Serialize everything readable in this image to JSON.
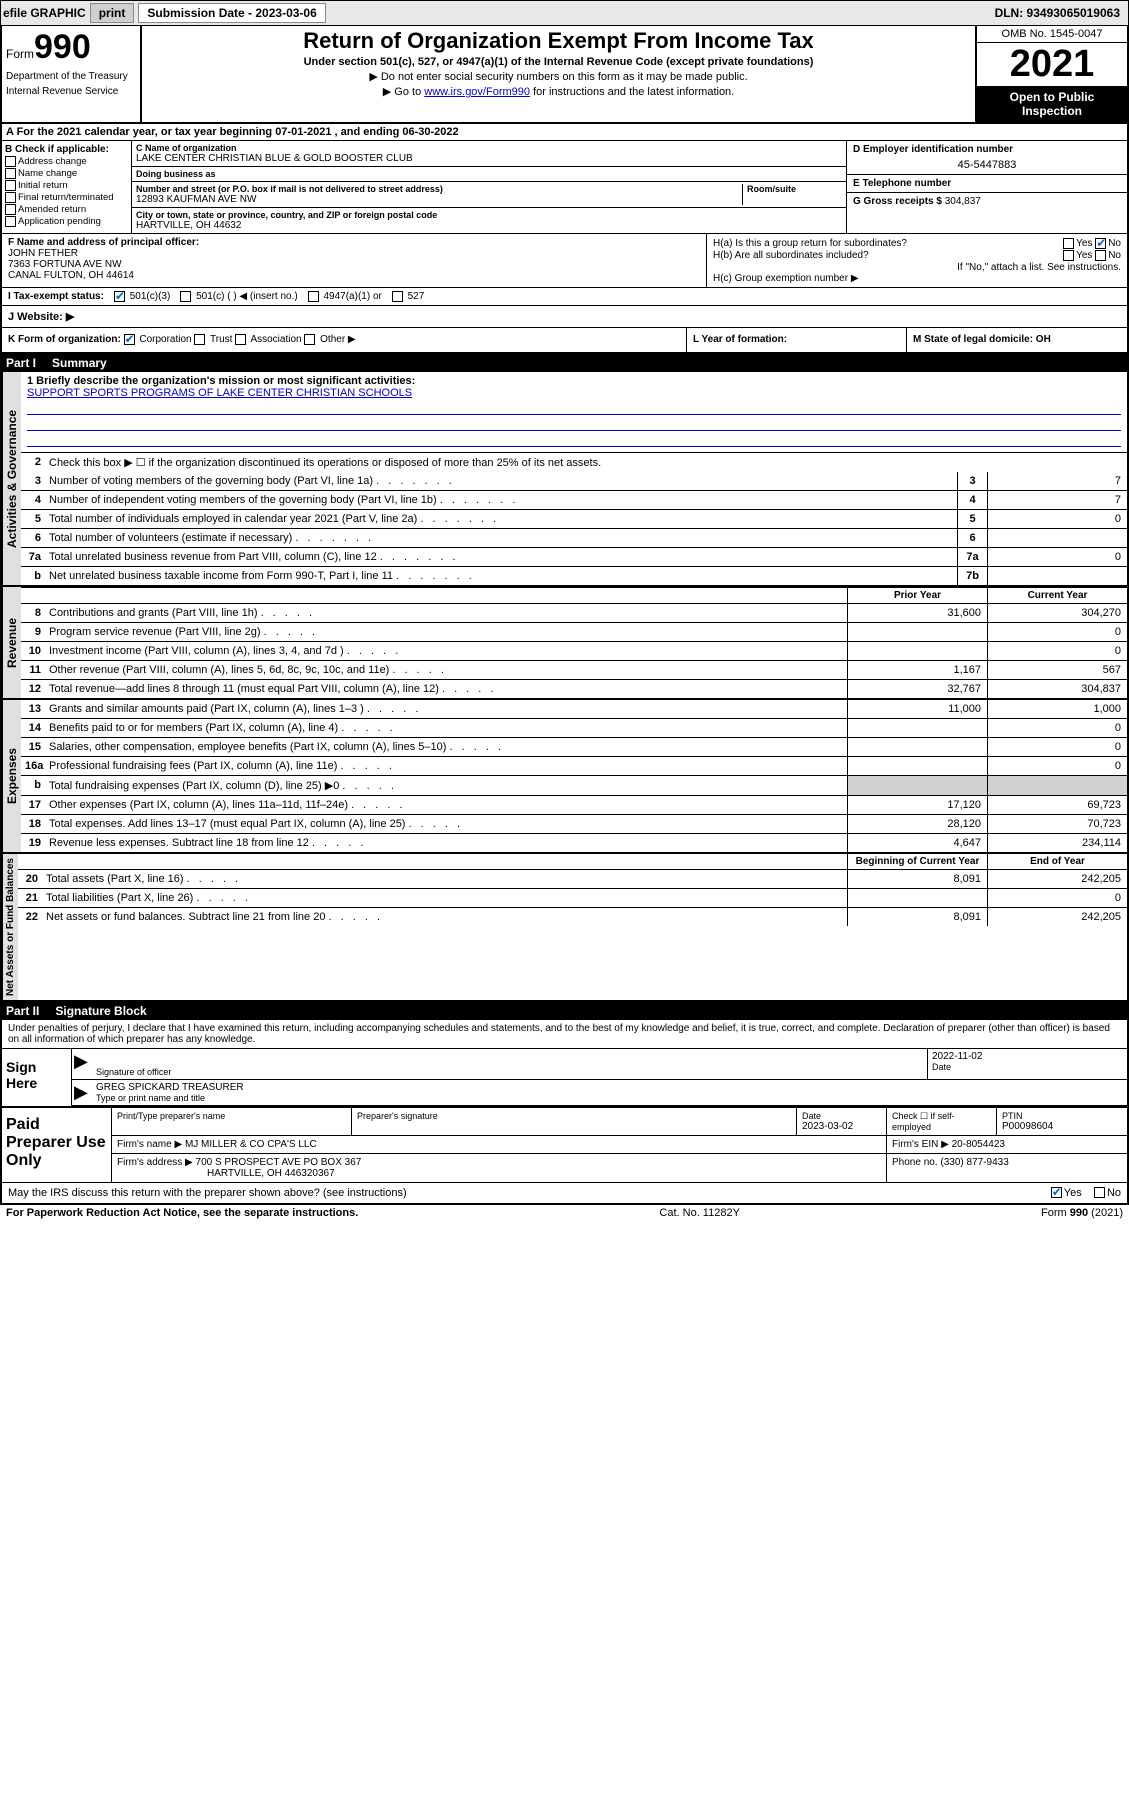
{
  "topbar": {
    "efile_label": "efile GRAPHIC",
    "print_btn": "print",
    "submission_label": "Submission Date - 2023-03-06",
    "dln_label": "DLN: 93493065019063"
  },
  "header": {
    "form_word": "Form",
    "form_num": "990",
    "dept": "Department of the Treasury",
    "irs": "Internal Revenue Service",
    "title": "Return of Organization Exempt From Income Tax",
    "subtitle": "Under section 501(c), 527, or 4947(a)(1) of the Internal Revenue Code (except private foundations)",
    "note1": "▶ Do not enter social security numbers on this form as it may be made public.",
    "note2_pre": "▶ Go to ",
    "note2_link": "www.irs.gov/Form990",
    "note2_post": " for instructions and the latest information.",
    "omb": "OMB No. 1545-0047",
    "year": "2021",
    "open": "Open to Public Inspection"
  },
  "period": {
    "text": "A For the 2021 calendar year, or tax year beginning 07-01-2021  , and ending 06-30-2022"
  },
  "colB": {
    "hdr": "B Check if applicable:",
    "items": [
      "Address change",
      "Name change",
      "Initial return",
      "Final return/terminated",
      "Amended return",
      "Application pending"
    ]
  },
  "colC": {
    "name_lbl": "C Name of organization",
    "name": "LAKE CENTER CHRISTIAN BLUE & GOLD BOOSTER CLUB",
    "dba_lbl": "Doing business as",
    "dba": "",
    "addr_lbl": "Number and street (or P.O. box if mail is not delivered to street address)",
    "room_lbl": "Room/suite",
    "addr": "12893 KAUFMAN AVE NW",
    "city_lbl": "City or town, state or province, country, and ZIP or foreign postal code",
    "city": "HARTVILLE, OH  44632"
  },
  "colD": {
    "ein_lbl": "D Employer identification number",
    "ein": "45-5447883",
    "tel_lbl": "E Telephone number",
    "tel": "",
    "gross_lbl": "G Gross receipts $",
    "gross": "304,837"
  },
  "officer": {
    "lbl": "F Name and address of principal officer:",
    "name": "JOHN FETHER",
    "addr1": "7363 FORTUNA AVE NW",
    "addr2": "CANAL FULTON, OH  44614"
  },
  "groupH": {
    "ha": "H(a)  Is this a group return for subordinates?",
    "ha_yes": "Yes",
    "ha_no": "No",
    "hb": "H(b)  Are all subordinates included?",
    "hb_yes": "Yes",
    "hb_no": "No",
    "hb_note": "If \"No,\" attach a list. See instructions.",
    "hc": "H(c)  Group exemption number ▶"
  },
  "status": {
    "lbl": "I   Tax-exempt status:",
    "o1": "501(c)(3)",
    "o2": "501(c) (  ) ◀ (insert no.)",
    "o3": "4947(a)(1) or",
    "o4": "527"
  },
  "website": {
    "lbl": "J   Website: ▶"
  },
  "korg": {
    "k": "K Form of organization:",
    "k_opts": [
      "Corporation",
      "Trust",
      "Association",
      "Other ▶"
    ],
    "l": "L Year of formation:",
    "m": "M State of legal domicile: OH"
  },
  "part1": {
    "hdr_num": "Part I",
    "hdr_title": "Summary",
    "vlabels": {
      "act": "Activities & Governance",
      "rev": "Revenue",
      "exp": "Expenses",
      "net": "Net Assets or Fund Balances"
    },
    "q1_lbl": "1  Briefly describe the organization's mission or most significant activities:",
    "q1_text": "SUPPORT SPORTS PROGRAMS OF LAKE CENTER CHRISTIAN SCHOOLS",
    "q2": "Check this box ▶ ☐ if the organization discontinued its operations or disposed of more than 25% of its net assets.",
    "lines_gov": [
      {
        "n": "3",
        "d": "Number of voting members of the governing body (Part VI, line 1a)",
        "box": "3",
        "v": "7"
      },
      {
        "n": "4",
        "d": "Number of independent voting members of the governing body (Part VI, line 1b)",
        "box": "4",
        "v": "7"
      },
      {
        "n": "5",
        "d": "Total number of individuals employed in calendar year 2021 (Part V, line 2a)",
        "box": "5",
        "v": "0"
      },
      {
        "n": "6",
        "d": "Total number of volunteers (estimate if necessary)",
        "box": "6",
        "v": ""
      },
      {
        "n": "7a",
        "d": "Total unrelated business revenue from Part VIII, column (C), line 12",
        "box": "7a",
        "v": "0"
      },
      {
        "n": "b",
        "d": "Net unrelated business taxable income from Form 990-T, Part I, line 11",
        "box": "7b",
        "v": ""
      }
    ],
    "col_hdr_prior": "Prior Year",
    "col_hdr_curr": "Current Year",
    "lines_rev": [
      {
        "n": "8",
        "d": "Contributions and grants (Part VIII, line 1h)",
        "p": "31,600",
        "c": "304,270"
      },
      {
        "n": "9",
        "d": "Program service revenue (Part VIII, line 2g)",
        "p": "",
        "c": "0"
      },
      {
        "n": "10",
        "d": "Investment income (Part VIII, column (A), lines 3, 4, and 7d )",
        "p": "",
        "c": "0"
      },
      {
        "n": "11",
        "d": "Other revenue (Part VIII, column (A), lines 5, 6d, 8c, 9c, 10c, and 11e)",
        "p": "1,167",
        "c": "567"
      },
      {
        "n": "12",
        "d": "Total revenue—add lines 8 through 11 (must equal Part VIII, column (A), line 12)",
        "p": "32,767",
        "c": "304,837"
      }
    ],
    "lines_exp": [
      {
        "n": "13",
        "d": "Grants and similar amounts paid (Part IX, column (A), lines 1–3 )",
        "p": "11,000",
        "c": "1,000"
      },
      {
        "n": "14",
        "d": "Benefits paid to or for members (Part IX, column (A), line 4)",
        "p": "",
        "c": "0"
      },
      {
        "n": "15",
        "d": "Salaries, other compensation, employee benefits (Part IX, column (A), lines 5–10)",
        "p": "",
        "c": "0"
      },
      {
        "n": "16a",
        "d": "Professional fundraising fees (Part IX, column (A), line 11e)",
        "p": "",
        "c": "0"
      },
      {
        "n": "b",
        "d": "Total fundraising expenses (Part IX, column (D), line 25) ▶0",
        "p": "SHADE",
        "c": "SHADE"
      },
      {
        "n": "17",
        "d": "Other expenses (Part IX, column (A), lines 11a–11d, 11f–24e)",
        "p": "17,120",
        "c": "69,723"
      },
      {
        "n": "18",
        "d": "Total expenses. Add lines 13–17 (must equal Part IX, column (A), line 25)",
        "p": "28,120",
        "c": "70,723"
      },
      {
        "n": "19",
        "d": "Revenue less expenses. Subtract line 18 from line 12",
        "p": "4,647",
        "c": "234,114"
      }
    ],
    "col_hdr_beg": "Beginning of Current Year",
    "col_hdr_end": "End of Year",
    "lines_net": [
      {
        "n": "20",
        "d": "Total assets (Part X, line 16)",
        "p": "8,091",
        "c": "242,205"
      },
      {
        "n": "21",
        "d": "Total liabilities (Part X, line 26)",
        "p": "",
        "c": "0"
      },
      {
        "n": "22",
        "d": "Net assets or fund balances. Subtract line 21 from line 20",
        "p": "8,091",
        "c": "242,205"
      }
    ]
  },
  "part2": {
    "hdr_num": "Part II",
    "hdr_title": "Signature Block",
    "intro": "Under penalties of perjury, I declare that I have examined this return, including accompanying schedules and statements, and to the best of my knowledge and belief, it is true, correct, and complete. Declaration of preparer (other than officer) is based on all information of which preparer has any knowledge.",
    "sign_here": "Sign Here",
    "sig_officer_lbl": "Signature of officer",
    "date_lbl": "Date",
    "sig_date": "2022-11-02",
    "name_title_lbl": "Type or print name and title",
    "name_title": "GREG SPICKARD TREASURER",
    "paid_lbl": "Paid Preparer Use Only",
    "prep_name_lbl": "Print/Type preparer's name",
    "prep_sig_lbl": "Preparer's signature",
    "prep_date_lbl": "Date",
    "prep_date": "2023-03-02",
    "check_lbl": "Check ☐ if self-employed",
    "ptin_lbl": "PTIN",
    "ptin": "P00098604",
    "firm_name_lbl": "Firm's name    ▶",
    "firm_name": "MJ MILLER & CO CPA'S LLC",
    "firm_ein_lbl": "Firm's EIN ▶",
    "firm_ein": "20-8054423",
    "firm_addr_lbl": "Firm's address ▶",
    "firm_addr1": "700 S PROSPECT AVE PO BOX 367",
    "firm_addr2": "HARTVILLE, OH  446320367",
    "phone_lbl": "Phone no.",
    "phone": "(330) 877-9433",
    "discuss": "May the IRS discuss this return with the preparer shown above? (see instructions)",
    "yes": "Yes",
    "no": "No"
  },
  "footer": {
    "left": "For Paperwork Reduction Act Notice, see the separate instructions.",
    "mid": "Cat. No. 11282Y",
    "right": "Form 990 (2021)"
  }
}
